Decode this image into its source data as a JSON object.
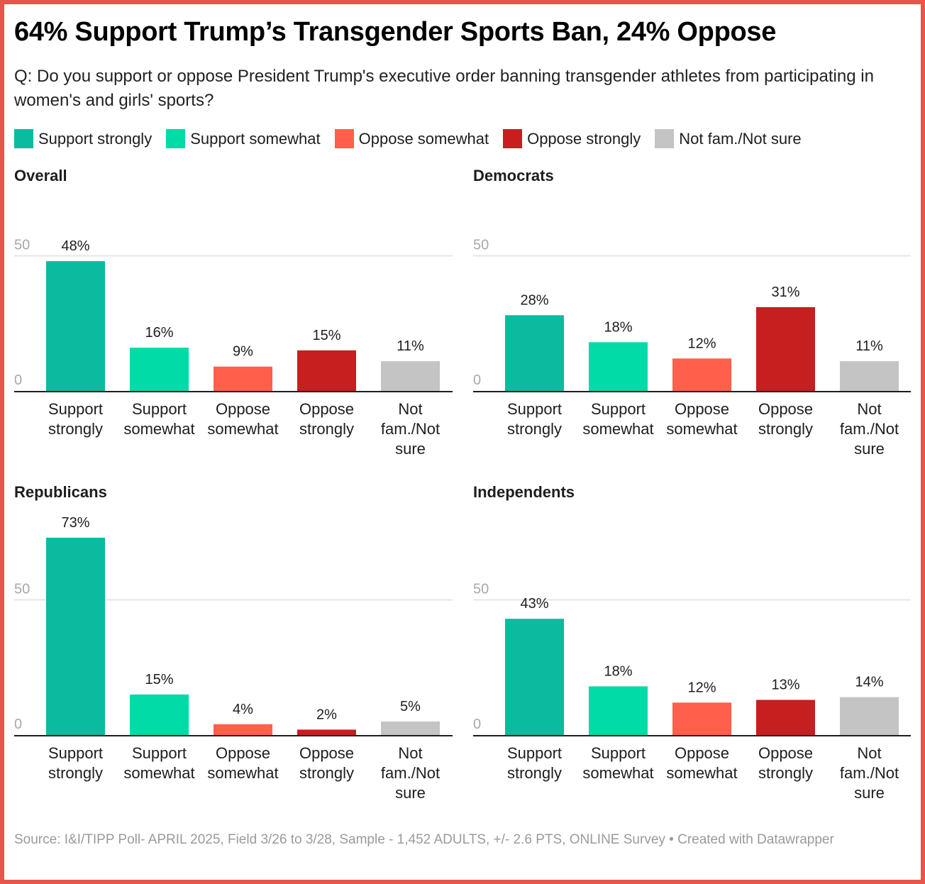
{
  "header": {
    "title": "64% Support Trump’s Transgender Sports Ban, 24% Oppose",
    "subtitle": "Q: Do you support or oppose President Trump's executive order banning transgender athletes from participating in women's and girls' sports?"
  },
  "legend": [
    {
      "label": "Support strongly",
      "color": "#0bbb9f"
    },
    {
      "label": "Support somewhat",
      "color": "#00dba8"
    },
    {
      "label": "Oppose somewhat",
      "color": "#ff5f4b"
    },
    {
      "label": "Oppose strongly",
      "color": "#c71e1f"
    },
    {
      "label": "Not fam./Not sure",
      "color": "#c4c4c4"
    }
  ],
  "footer": {
    "source": "Source: I&I/TIPP Poll- APRIL 2025, Field 3/26 to 3/28, Sample - 1,452 ADULTS, +/- 2.6 PTS, ONLINE Survey • Created with Datawrapper"
  },
  "chart_data": [
    {
      "type": "bar",
      "title": "Overall",
      "categories": [
        [
          "Support",
          "strongly"
        ],
        [
          "Support",
          "somewhat"
        ],
        [
          "Oppose",
          "somewhat"
        ],
        [
          "Oppose",
          "strongly"
        ],
        [
          "Not",
          "fam./Not",
          "sure"
        ]
      ],
      "values": [
        48,
        16,
        9,
        15,
        11
      ],
      "value_labels": [
        "48%",
        "16%",
        "9%",
        "15%",
        "11%"
      ],
      "colors": [
        "#0bbb9f",
        "#00dba8",
        "#ff5f4b",
        "#c71e1f",
        "#c4c4c4"
      ],
      "yticks": [
        0,
        50
      ],
      "ylim": [
        0,
        50
      ],
      "grid": true,
      "xlabel": "",
      "ylabel": ""
    },
    {
      "type": "bar",
      "title": "Democrats",
      "categories": [
        [
          "Support",
          "strongly"
        ],
        [
          "Support",
          "somewhat"
        ],
        [
          "Oppose",
          "somewhat"
        ],
        [
          "Oppose",
          "strongly"
        ],
        [
          "Not",
          "fam./Not",
          "sure"
        ]
      ],
      "values": [
        28,
        18,
        12,
        31,
        11
      ],
      "value_labels": [
        "28%",
        "18%",
        "12%",
        "31%",
        "11%"
      ],
      "colors": [
        "#0bbb9f",
        "#00dba8",
        "#ff5f4b",
        "#c71e1f",
        "#c4c4c4"
      ],
      "yticks": [
        0,
        50
      ],
      "ylim": [
        0,
        50
      ],
      "grid": true,
      "xlabel": "",
      "ylabel": ""
    },
    {
      "type": "bar",
      "title": "Republicans",
      "categories": [
        [
          "Support",
          "strongly"
        ],
        [
          "Support",
          "somewhat"
        ],
        [
          "Oppose",
          "somewhat"
        ],
        [
          "Oppose",
          "strongly"
        ],
        [
          "Not",
          "fam./Not",
          "sure"
        ]
      ],
      "values": [
        73,
        15,
        4,
        2,
        5
      ],
      "value_labels": [
        "73%",
        "15%",
        "4%",
        "2%",
        "5%"
      ],
      "colors": [
        "#0bbb9f",
        "#00dba8",
        "#ff5f4b",
        "#c71e1f",
        "#c4c4c4"
      ],
      "yticks": [
        0,
        50
      ],
      "ylim": [
        0,
        73
      ],
      "grid": true,
      "xlabel": "",
      "ylabel": ""
    },
    {
      "type": "bar",
      "title": "Independents",
      "categories": [
        [
          "Support",
          "strongly"
        ],
        [
          "Support",
          "somewhat"
        ],
        [
          "Oppose",
          "somewhat"
        ],
        [
          "Oppose",
          "strongly"
        ],
        [
          "Not",
          "fam./Not",
          "sure"
        ]
      ],
      "values": [
        43,
        18,
        12,
        13,
        14
      ],
      "value_labels": [
        "43%",
        "18%",
        "12%",
        "13%",
        "14%"
      ],
      "colors": [
        "#0bbb9f",
        "#00dba8",
        "#ff5f4b",
        "#c71e1f",
        "#c4c4c4"
      ],
      "yticks": [
        0,
        50
      ],
      "ylim": [
        0,
        50
      ],
      "grid": true,
      "xlabel": "",
      "ylabel": ""
    }
  ]
}
